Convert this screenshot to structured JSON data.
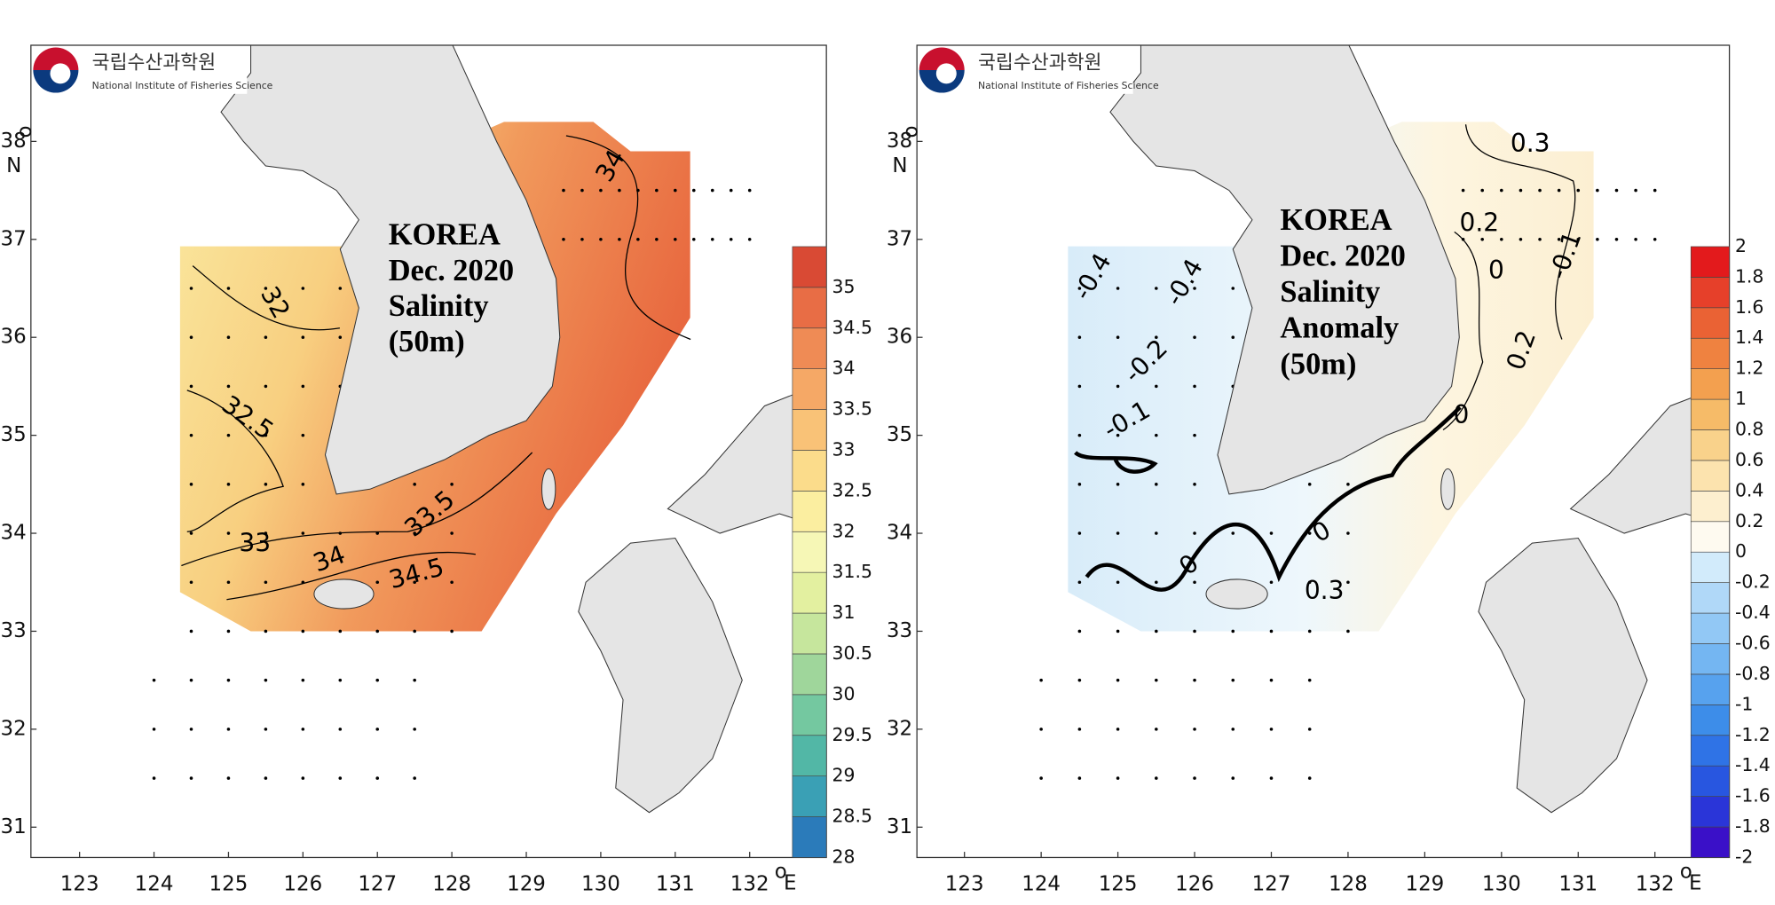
{
  "panels": [
    {
      "logo_korean": "국립수산과학원",
      "logo_english": "National Institute of Fisheries Science",
      "title_lines": [
        "KOREA",
        "Dec. 2020",
        "Salinity",
        "(50m)"
      ],
      "lon_ticks": [
        123,
        124,
        125,
        126,
        127,
        128,
        129,
        130,
        131,
        132
      ],
      "lat_ticks": [
        31,
        32,
        33,
        34,
        35,
        36,
        37,
        38
      ],
      "degree_mark": "o",
      "x_unit": "E",
      "y_unit": "N",
      "colorbar": {
        "levels": [
          28,
          28.5,
          29,
          29.5,
          30,
          30.5,
          31,
          31.5,
          32,
          32.5,
          33,
          33.5,
          34,
          34.5,
          35,
          35.5
        ],
        "ticks": [
          28,
          28.5,
          29,
          29.5,
          30,
          30.5,
          31,
          31.5,
          32,
          32.5,
          33,
          33.5,
          34,
          34.5,
          35
        ],
        "colors": [
          "#2b7bba",
          "#3aa0b5",
          "#52b7a6",
          "#74c8a0",
          "#9fd69b",
          "#c6e69d",
          "#e3f0a0",
          "#f6f7b6",
          "#fbeea0",
          "#fbdc8b",
          "#f9c277",
          "#f5a866",
          "#ef8b55",
          "#e86d45",
          "#d94a34"
        ]
      },
      "contour_labels": [
        "34",
        "32",
        "32.5",
        "33.5",
        "33",
        "34",
        "34.5"
      ]
    },
    {
      "logo_korean": "국립수산과학원",
      "logo_english": "National Institute of Fisheries Science",
      "title_lines": [
        "KOREA",
        "Dec. 2020",
        "Salinity",
        "Anomaly",
        "(50m)"
      ],
      "lon_ticks": [
        123,
        124,
        125,
        126,
        127,
        128,
        129,
        130,
        131,
        132
      ],
      "lat_ticks": [
        31,
        32,
        33,
        34,
        35,
        36,
        37,
        38
      ],
      "degree_mark": "o",
      "x_unit": "E",
      "y_unit": "N",
      "colorbar": {
        "levels": [
          -2,
          -1.8,
          -1.6,
          -1.4,
          -1.2,
          -1,
          -0.8,
          -0.6,
          -0.4,
          -0.2,
          0,
          0.2,
          0.4,
          0.6,
          0.8,
          1,
          1.2,
          1.4,
          1.6,
          1.8,
          2
        ],
        "ticks": [
          -2,
          -1.8,
          -1.6,
          -1.4,
          -1.2,
          -1,
          -0.8,
          -0.6,
          -0.4,
          -0.2,
          0,
          0.2,
          0.4,
          0.6,
          0.8,
          1,
          1.2,
          1.4,
          1.6,
          1.8,
          2
        ],
        "colors": [
          "#3a10c8",
          "#2a35d8",
          "#2856e0",
          "#2f73e6",
          "#3d8de9",
          "#57a2ee",
          "#74b6f2",
          "#92c8f5",
          "#b0d8f8",
          "#d2ebfb",
          "#fefaf0",
          "#fdefcf",
          "#fce3ae",
          "#f9d28b",
          "#f6bb68",
          "#f3a04f",
          "#ef8240",
          "#ea6234",
          "#e6402a",
          "#e31a1c"
        ]
      },
      "contour_labels": [
        "0.3",
        "0.2",
        "-0.1",
        "0",
        "0.2",
        "0",
        "-0.4",
        "-0.4",
        "-0.2",
        "-0.1",
        "0",
        "0",
        "0.3"
      ]
    }
  ]
}
